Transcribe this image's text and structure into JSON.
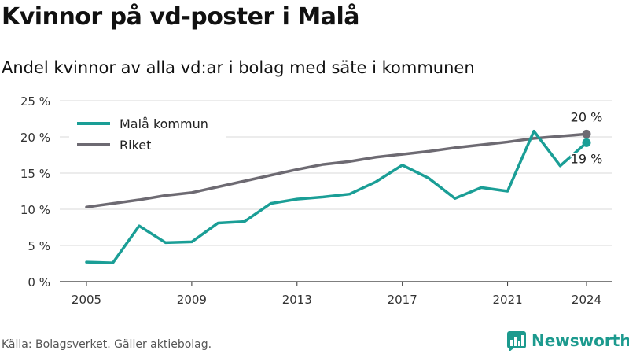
{
  "title": "Kvinnor på vd-poster i Malå",
  "subtitle": "Andel kvinnor av alla vd:ar i bolag med säte i kommunen",
  "source": "Källa: Bolagsverket. Gäller aktiebolag.",
  "brand": "Newsworthy",
  "chart_data": {
    "type": "line",
    "x": [
      2005,
      2006,
      2007,
      2008,
      2009,
      2010,
      2011,
      2012,
      2013,
      2014,
      2015,
      2016,
      2017,
      2018,
      2019,
      2020,
      2021,
      2022,
      2023,
      2024
    ],
    "xticks": [
      2005,
      2009,
      2013,
      2017,
      2021,
      2024
    ],
    "yticks": [
      0,
      5,
      10,
      15,
      20,
      25
    ],
    "ytick_labels": [
      "0 %",
      "5 %",
      "10 %",
      "15 %",
      "20 %",
      "25 %"
    ],
    "ylim": [
      0,
      25
    ],
    "grid": true,
    "legend_position": "top-left",
    "series": [
      {
        "name": "Malå kommun",
        "color": "#1a9e96",
        "values": [
          2.7,
          2.6,
          7.7,
          5.4,
          5.5,
          8.1,
          8.3,
          10.8,
          11.4,
          11.7,
          12.1,
          13.8,
          16.1,
          14.3,
          11.5,
          13.0,
          12.5,
          20.8,
          16.0,
          19.2
        ],
        "end_label": "19 %"
      },
      {
        "name": "Riket",
        "color": "#6d6a72",
        "values": [
          10.3,
          10.8,
          11.3,
          11.9,
          12.3,
          13.1,
          13.9,
          14.7,
          15.5,
          16.2,
          16.6,
          17.2,
          17.6,
          18.0,
          18.5,
          18.9,
          19.3,
          19.8,
          20.1,
          20.4
        ],
        "end_label": "20 %"
      }
    ]
  }
}
